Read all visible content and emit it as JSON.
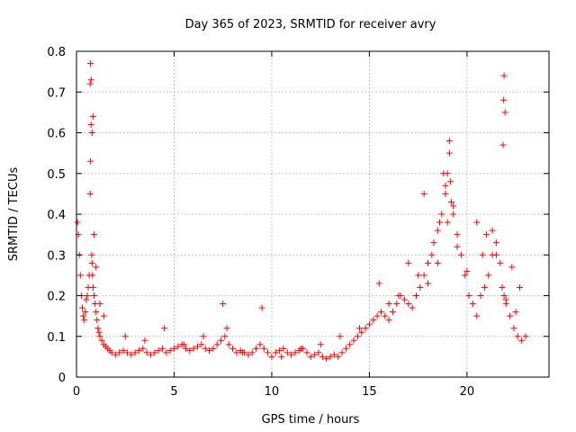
{
  "chart_data": {
    "type": "scatter",
    "title": "Day 365 of 2023, SRMTID for receiver avry",
    "xlabel": "GPS time / hours",
    "ylabel": "SRMTID / TECUs",
    "xlim": [
      0,
      24.2
    ],
    "ylim": [
      0,
      0.8
    ],
    "xticks": [
      0,
      5,
      10,
      15,
      20
    ],
    "xtick_labels": [
      "0",
      "5",
      "10",
      "15",
      "20"
    ],
    "yticks": [
      0,
      0.1,
      0.2,
      0.3,
      0.4,
      0.5,
      0.6,
      0.7,
      0.8
    ],
    "ytick_labels": [
      "0",
      "0.1",
      "0.2",
      "0.3",
      "0.4",
      "0.5",
      "0.6",
      "0.7",
      "0.8"
    ],
    "grid": true,
    "marker": "+",
    "series": [
      {
        "name": "SRMTID",
        "color": "#ff0000",
        "x": [
          0.05,
          0.1,
          0.15,
          0.2,
          0.25,
          0.3,
          0.35,
          0.4,
          0.45,
          0.5,
          0.55,
          0.6,
          0.65,
          0.7,
          0.72,
          0.75,
          0.78,
          0.8,
          0.82,
          0.85,
          0.9,
          0.95,
          1.0,
          1.05,
          1.1,
          1.15,
          1.2,
          1.3,
          1.4,
          1.5,
          1.6,
          1.7,
          1.8,
          2.0,
          2.2,
          2.4,
          2.6,
          2.8,
          3.0,
          3.2,
          3.4,
          3.6,
          3.8,
          4.0,
          4.2,
          4.4,
          4.6,
          4.8,
          5.0,
          5.2,
          5.4,
          5.6,
          5.8,
          6.0,
          6.2,
          6.4,
          6.6,
          6.8,
          7.0,
          7.2,
          7.4,
          7.6,
          7.7,
          7.8,
          8.0,
          8.2,
          8.4,
          8.6,
          8.8,
          9.0,
          9.2,
          9.4,
          9.6,
          9.8,
          10.0,
          10.2,
          10.4,
          10.6,
          10.8,
          11.0,
          11.2,
          11.4,
          11.6,
          11.8,
          12.0,
          12.2,
          12.4,
          12.6,
          12.8,
          13.0,
          13.2,
          13.4,
          13.6,
          13.8,
          14.0,
          14.2,
          14.4,
          14.6,
          14.8,
          15.0,
          15.2,
          15.4,
          15.6,
          15.8,
          16.0,
          16.2,
          16.4,
          16.6,
          16.8,
          17.0,
          17.2,
          17.4,
          17.6,
          17.8,
          18.0,
          18.2,
          18.3,
          18.5,
          18.7,
          18.9,
          19.0,
          19.1,
          19.2,
          19.3,
          19.5,
          19.7,
          19.9,
          20.1,
          20.3,
          20.5,
          20.7,
          20.9,
          21.1,
          21.3,
          21.5,
          21.7,
          21.8,
          21.9,
          22.0,
          22.2,
          22.4,
          22.6,
          22.8,
          23.0,
          0.7,
          0.72,
          0.75,
          0.8,
          0.85,
          0.9,
          1.0,
          1.2,
          1.4,
          2.5,
          3.5,
          4.5,
          5.5,
          6.5,
          7.5,
          8.5,
          9.5,
          10.5,
          11.5,
          12.5,
          13.5,
          14.5,
          15.5,
          16.5,
          17.5,
          18.5,
          19.5,
          20.5,
          21.5,
          22.5,
          16.0,
          17.0,
          18.0,
          19.0,
          20.0,
          21.0,
          22.0,
          17.8,
          18.8,
          19.3,
          20.8,
          21.3,
          21.85,
          21.88,
          21.9,
          21.95,
          22.3,
          22.7,
          19.1,
          19.15,
          18.6,
          18.9
        ],
        "y": [
          0.38,
          0.35,
          0.3,
          0.25,
          0.2,
          0.17,
          0.15,
          0.14,
          0.16,
          0.19,
          0.2,
          0.22,
          0.25,
          0.45,
          0.53,
          0.62,
          0.3,
          0.28,
          0.25,
          0.22,
          0.2,
          0.18,
          0.16,
          0.14,
          0.12,
          0.11,
          0.1,
          0.09,
          0.08,
          0.075,
          0.07,
          0.065,
          0.06,
          0.055,
          0.06,
          0.065,
          0.06,
          0.055,
          0.06,
          0.065,
          0.07,
          0.06,
          0.055,
          0.06,
          0.065,
          0.07,
          0.06,
          0.065,
          0.07,
          0.075,
          0.08,
          0.07,
          0.065,
          0.07,
          0.075,
          0.08,
          0.07,
          0.065,
          0.07,
          0.08,
          0.09,
          0.1,
          0.12,
          0.08,
          0.07,
          0.06,
          0.065,
          0.06,
          0.055,
          0.06,
          0.07,
          0.08,
          0.07,
          0.06,
          0.05,
          0.06,
          0.065,
          0.07,
          0.06,
          0.055,
          0.06,
          0.065,
          0.07,
          0.06,
          0.05,
          0.055,
          0.06,
          0.05,
          0.045,
          0.05,
          0.055,
          0.05,
          0.06,
          0.07,
          0.08,
          0.09,
          0.1,
          0.11,
          0.12,
          0.13,
          0.14,
          0.15,
          0.16,
          0.15,
          0.14,
          0.16,
          0.18,
          0.2,
          0.19,
          0.18,
          0.17,
          0.2,
          0.22,
          0.25,
          0.28,
          0.3,
          0.33,
          0.36,
          0.4,
          0.45,
          0.5,
          0.55,
          0.43,
          0.4,
          0.35,
          0.3,
          0.25,
          0.2,
          0.18,
          0.15,
          0.2,
          0.22,
          0.25,
          0.3,
          0.33,
          0.28,
          0.22,
          0.2,
          0.18,
          0.15,
          0.12,
          0.1,
          0.09,
          0.1,
          0.72,
          0.77,
          0.73,
          0.6,
          0.64,
          0.35,
          0.27,
          0.18,
          0.15,
          0.1,
          0.09,
          0.12,
          0.08,
          0.1,
          0.18,
          0.06,
          0.17,
          0.05,
          0.07,
          0.08,
          0.1,
          0.12,
          0.23,
          0.2,
          0.25,
          0.28,
          0.32,
          0.38,
          0.3,
          0.16,
          0.18,
          0.28,
          0.23,
          0.38,
          0.26,
          0.35,
          0.19,
          0.45,
          0.5,
          0.42,
          0.3,
          0.36,
          0.57,
          0.68,
          0.74,
          0.65,
          0.27,
          0.22,
          0.58,
          0.48,
          0.38,
          0.47
        ]
      }
    ]
  }
}
